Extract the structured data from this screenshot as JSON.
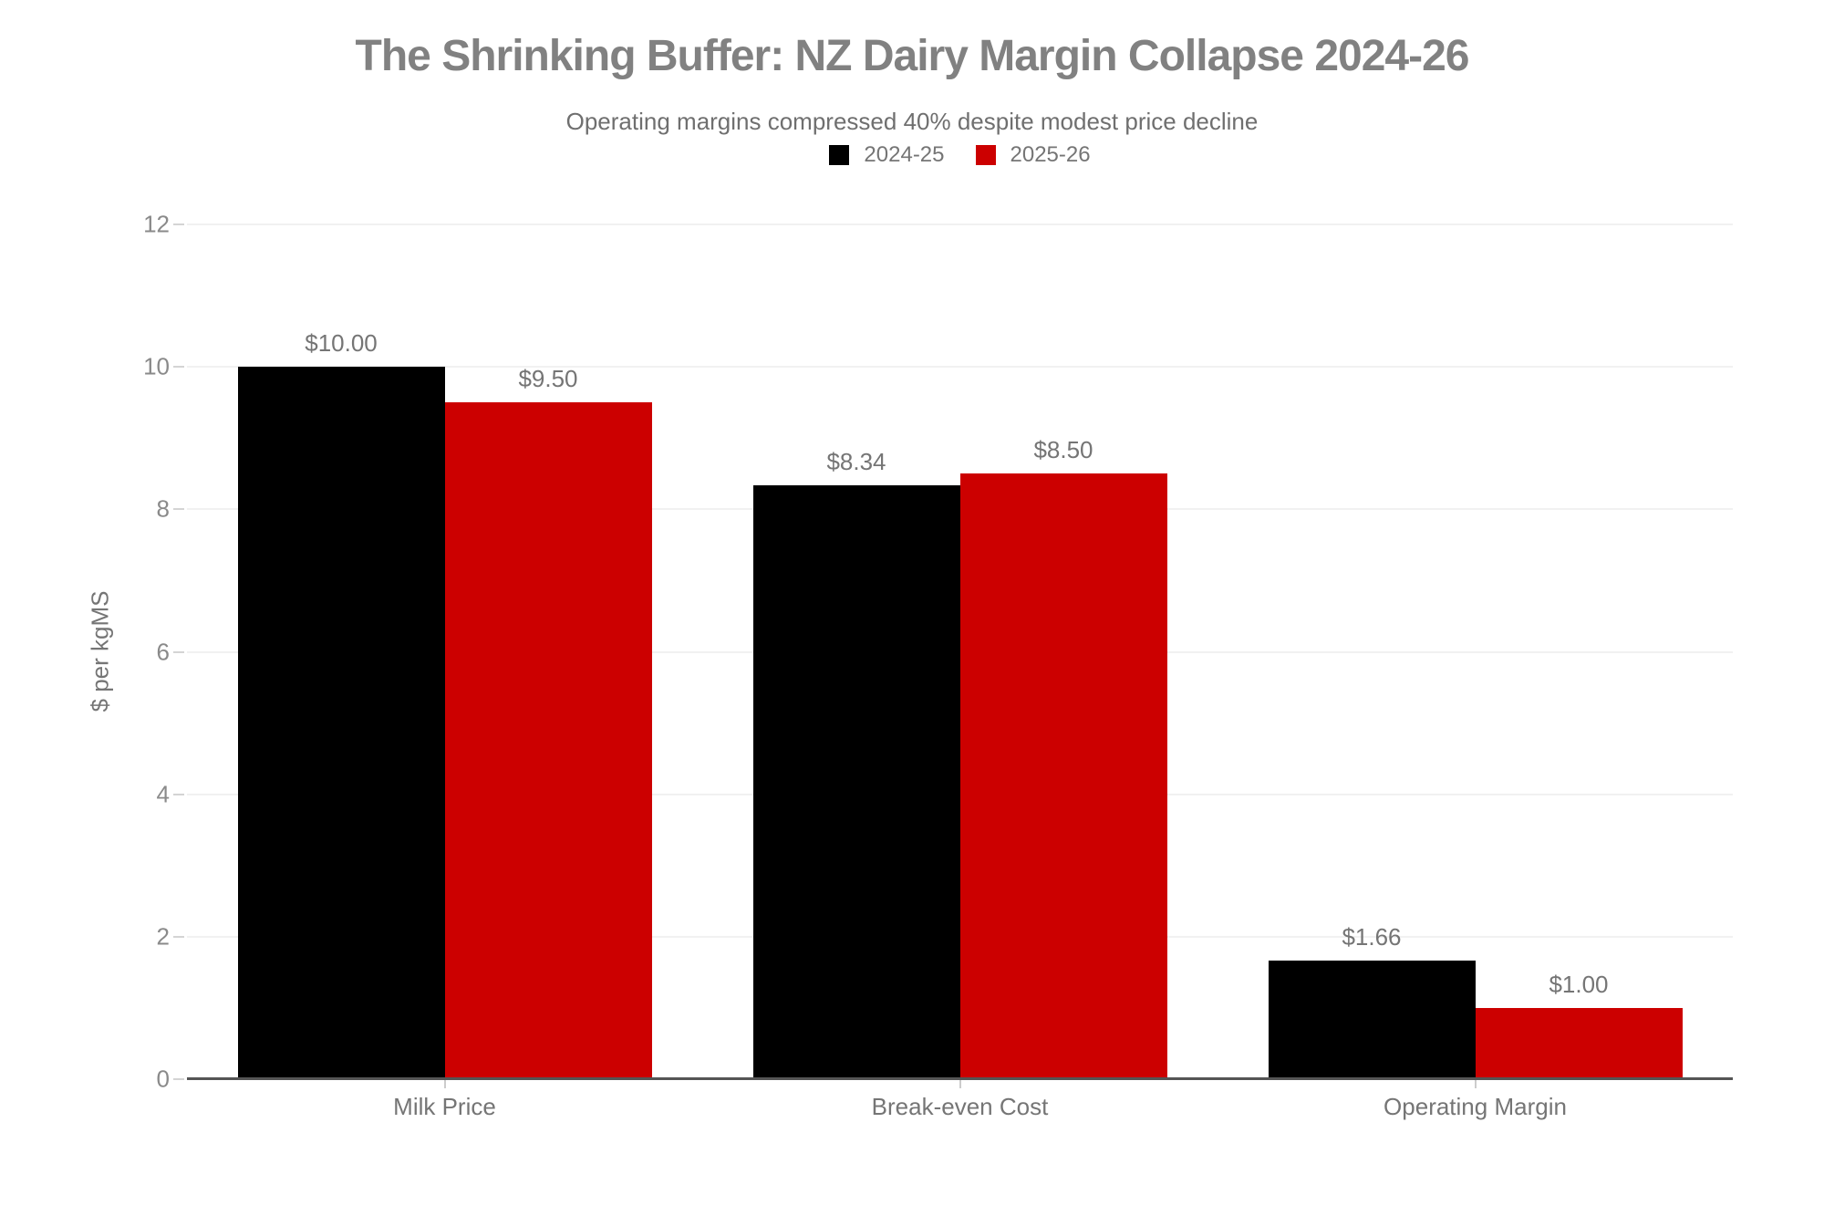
{
  "header": {
    "title": "The Shrinking Buffer: NZ Dairy Margin Collapse 2024-26",
    "subtitle": "Operating margins compressed 40% despite modest price decline"
  },
  "legend": {
    "items": [
      {
        "label": "2024-25",
        "color": "#000000"
      },
      {
        "label": "2025-26",
        "color": "#cc0000"
      }
    ]
  },
  "colors": {
    "series_2024_25": "#000000",
    "series_2025_26": "#cc0000",
    "title_text": "#818181",
    "axis_text": "#757575",
    "axis_line": "#555555",
    "gridline": "#f1f1f1"
  },
  "chart_data": {
    "type": "bar",
    "title": "The Shrinking Buffer: NZ Dairy Margin Collapse 2024-26",
    "subtitle": "Operating margins compressed 40% despite modest price decline",
    "categories": [
      "Milk Price",
      "Break-even Cost",
      "Operating Margin"
    ],
    "series": [
      {
        "name": "2024-25",
        "color": "#000000",
        "values": [
          10.0,
          8.34,
          1.66
        ],
        "data_labels": [
          "$10.00",
          "$8.34",
          "$1.66"
        ]
      },
      {
        "name": "2025-26",
        "color": "#cc0000",
        "values": [
          9.5,
          8.5,
          1.0
        ],
        "data_labels": [
          "$9.50",
          "$8.50",
          "$1.00"
        ]
      }
    ],
    "xlabel": "",
    "ylabel": "$ per kgMS",
    "ylim": [
      0,
      12
    ],
    "yticks": [
      0,
      2,
      4,
      6,
      8,
      10,
      12
    ],
    "grid": true,
    "legend_position": "top"
  }
}
